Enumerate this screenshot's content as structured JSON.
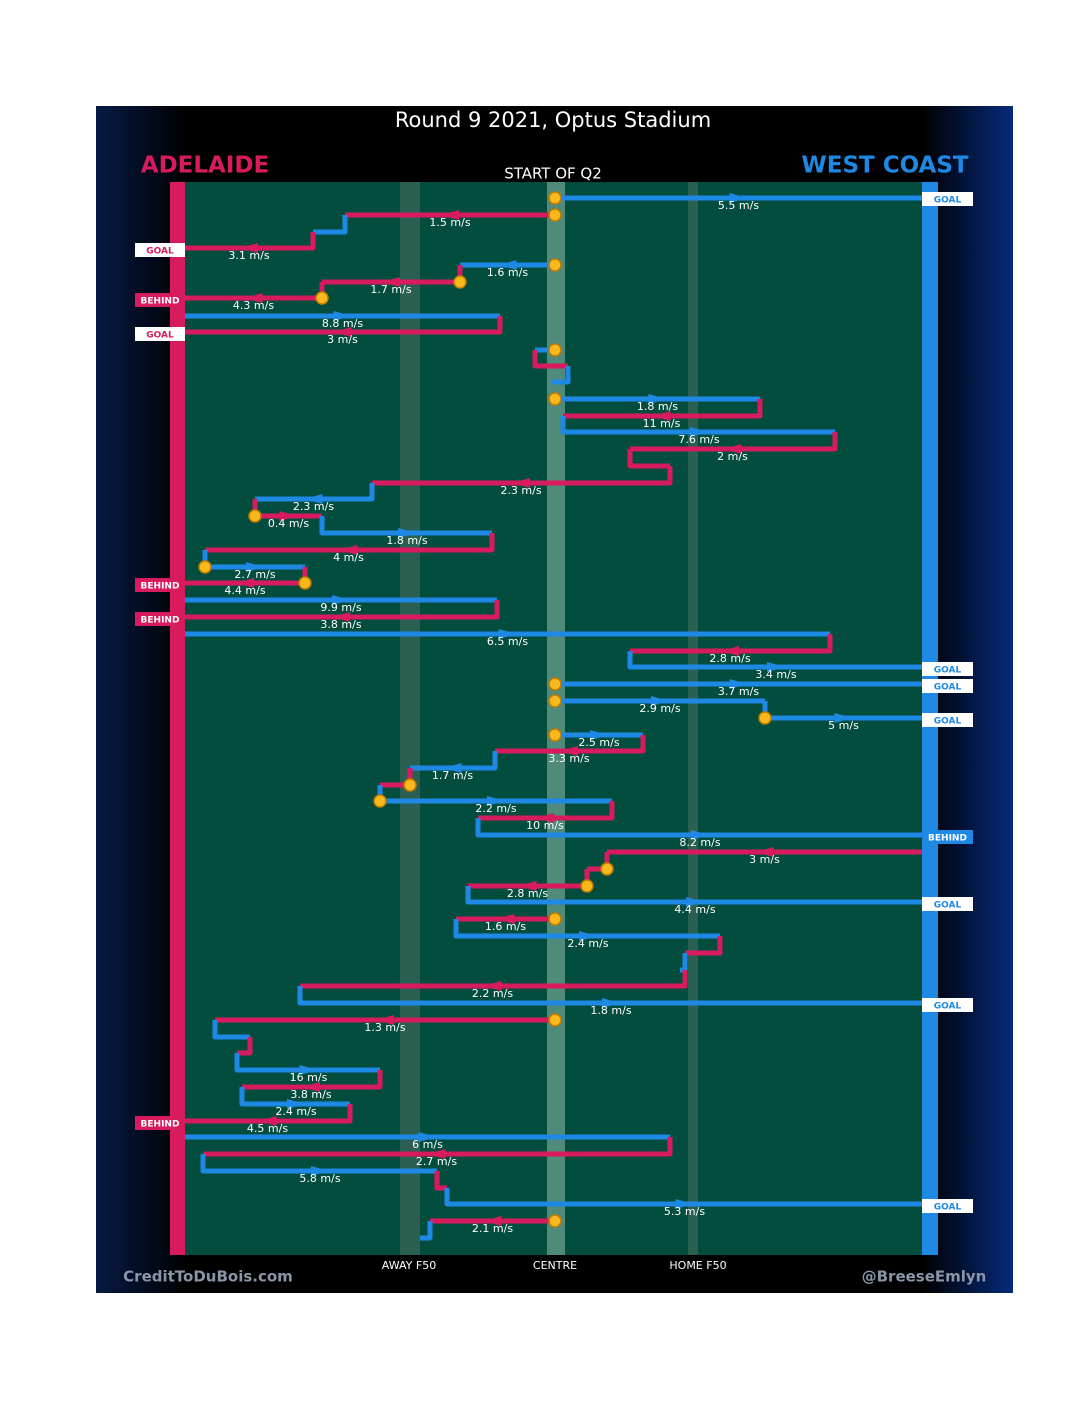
{
  "title": "Round 9 2021, Optus Stadium",
  "teams": {
    "home": "ADELAIDE",
    "away": "WEST COAST"
  },
  "start_label": "START OF Q2",
  "axis_labels": [
    "AWAY F50",
    "CENTRE",
    "HOME F50"
  ],
  "credits": {
    "left": "CreditToDuBois.com",
    "right": "@BreeseEmlyn"
  },
  "speeds": [
    "5.5 m/s",
    "1.5 m/s",
    "3.1 m/s",
    "1.6 m/s",
    "1.7 m/s",
    "4.3 m/s",
    "8.8 m/s",
    "3 m/s",
    "1.8 m/s",
    "11 m/s",
    "7.6 m/s",
    "2 m/s",
    "2.3 m/s",
    "2.3 m/s",
    "0.4 m/s",
    "1.8 m/s",
    "4 m/s",
    "2.7 m/s",
    "4.4 m/s",
    "9.9 m/s",
    "3.8 m/s",
    "6.5 m/s",
    "2.8 m/s",
    "3.4 m/s",
    "3.7 m/s",
    "2.9 m/s",
    "5 m/s",
    "2.5 m/s",
    "3.3 m/s",
    "1.7 m/s",
    "2.2 m/s",
    "10 m/s",
    "8.2 m/s",
    "3 m/s",
    "2.8 m/s",
    "4.4 m/s",
    "1.6 m/s",
    "2.4 m/s",
    "2.2 m/s",
    "1.8 m/s",
    "1.3 m/s",
    "16 m/s",
    "3.8 m/s",
    "2.4 m/s",
    "4.5 m/s",
    "6 m/s",
    "2.7 m/s",
    "5.8 m/s",
    "5.3 m/s",
    "2.1 m/s"
  ],
  "outcomes": [
    "GOAL",
    "GOAL",
    "BEHIND",
    "GOAL",
    "BEHIND",
    "BEHIND",
    "GOAL",
    "GOAL",
    "GOAL",
    "BEHIND",
    "GOAL",
    "GOAL",
    "BEHIND",
    "GOAL"
  ]
}
